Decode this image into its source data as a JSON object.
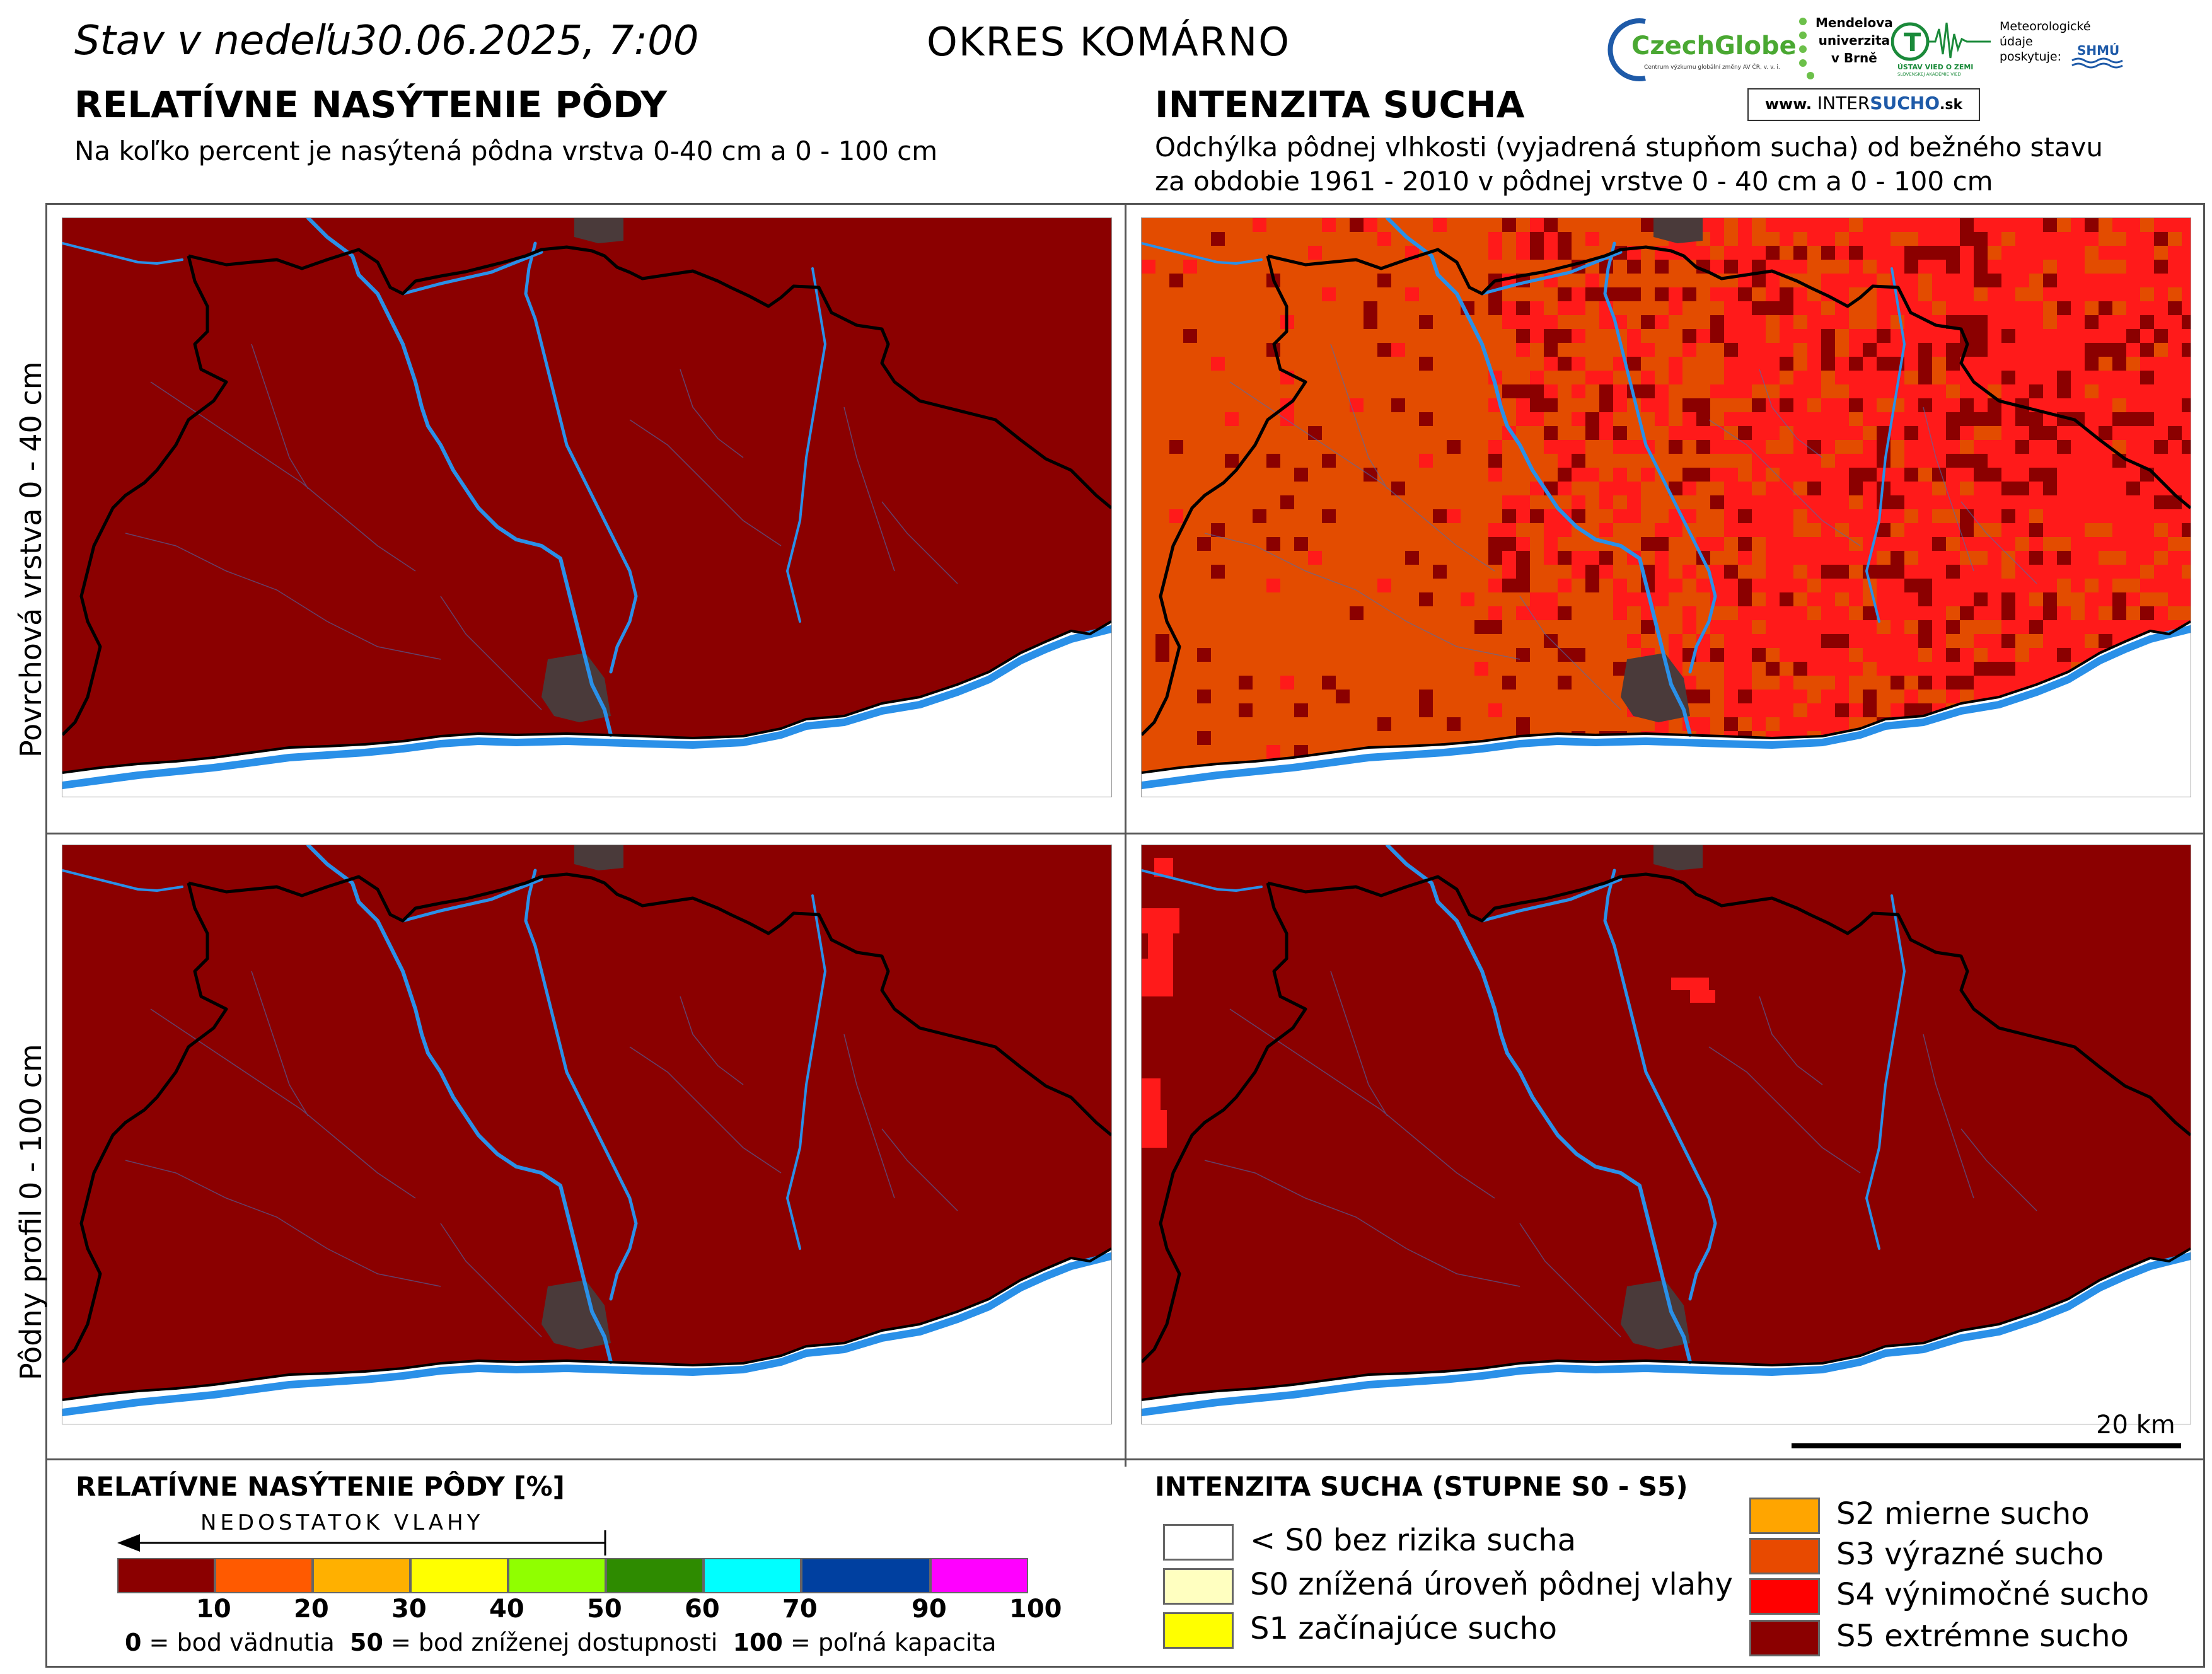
{
  "header": {
    "status_prefix": "Stav v nedeľu",
    "date_time": "30.06.2025, 7:00",
    "district": "OKRES  KOMÁRNO"
  },
  "left_panel": {
    "title": "RELATÍVNE NASÝTENIE PÔDY",
    "subtitle": "Na koľko percent je nasýtená pôdna vrstva 0-40 cm a 0 - 100 cm"
  },
  "right_panel": {
    "title": "INTENZITA SUCHA",
    "subtitle_line1": "Odchýlka pôdnej vlhkosti (vyjadrená stupňom sucha) od bežného stavu",
    "subtitle_line2": "za obdobie 1961 - 2010 v pôdnej vrstve 0 - 40 cm a 0 - 100 cm"
  },
  "rows": {
    "top": "Povrchová vrstva 0 - 40 cm",
    "bottom": "Pôdny profil 0 - 100 cm"
  },
  "logos": {
    "czechglobe": "CzechGlobe",
    "czechglobe_sub": "Centrum výzkumu globální změny AV ČR, v. v. i.",
    "mendel_l1": "Mendelova",
    "mendel_l2": "univerzita",
    "mendel_l3": "v Brně",
    "uvz": "ÚSTAV VIED O ZEMI",
    "uvz_sub": "SLOVENSKEJ AKADÉMIE VIED",
    "meteo_l1": "Meteorologické",
    "meteo_l2": "údaje",
    "meteo_l3": "poskytuje:",
    "shmu": "SHMÚ",
    "intersucho_prefix": "www.",
    "intersucho_a": "INTER",
    "intersucho_b": "SUCHO",
    "intersucho_suffix": ".sk"
  },
  "scalebar": {
    "label": "20 km"
  },
  "saturation_legend": {
    "title": "RELATÍVNE NASÝTENIE PÔDY [%]",
    "arrow_label": "NEDOSTATOK VLAHY",
    "colors": [
      "#8b0000",
      "#ff5a00",
      "#ffb000",
      "#ffff00",
      "#90ff00",
      "#2e8b00",
      "#00ffff",
      "#0040a0",
      "#ff00ff"
    ],
    "ticks": [
      "10",
      "20",
      "30",
      "40",
      "50",
      "60",
      "70",
      "90",
      "100"
    ],
    "note_0_key": "0",
    "note_0_text": " = bod vädnutia",
    "note_50_key": "50",
    "note_50_text": " = bod zníženej dostupnosti",
    "note_100_key": "100",
    "note_100_text": " = poľná kapacita"
  },
  "drought_legend": {
    "title": "INTENZITA SUCHA (STUPNE S0 - S5)",
    "classes": [
      {
        "label": "< S0 bez rizika sucha",
        "color": "#ffffff"
      },
      {
        "label": "S0 znížená úroveň pôdnej vlahy",
        "color": "#ffffc0"
      },
      {
        "label": "S1 začínajúce sucho",
        "color": "#ffff00"
      },
      {
        "label": "S2 mierne sucho",
        "color": "#ffa500"
      },
      {
        "label": "S3 výrazné sucho",
        "color": "#e84a00"
      },
      {
        "label": "S4 výnimočné sucho",
        "color": "#ff0000"
      },
      {
        "label": "S5 extrémne sucho",
        "color": "#8b0000"
      }
    ]
  },
  "map_colors": {
    "s5": "#8b0000",
    "s4": "#ff1a1a",
    "s3": "#e34c00",
    "river": "#2a90e8",
    "town": "#4a3a3a",
    "border": "#000000"
  }
}
